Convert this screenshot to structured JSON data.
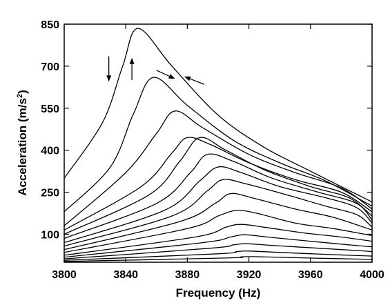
{
  "chart_data": {
    "type": "line",
    "title": "",
    "xlabel": "Frequency (Hz)",
    "ylabel_main": "Acceleration (m/s",
    "ylabel_sup": "2",
    "ylabel_end": ")",
    "xlim": [
      3800,
      4000
    ],
    "ylim": [
      0,
      850
    ],
    "xticks": [
      3800,
      3840,
      3880,
      3920,
      3960,
      4000
    ],
    "xtick_labels": [
      "3800",
      "3840",
      "3880",
      "3920",
      "3960",
      "4000"
    ],
    "yticks": [
      100,
      250,
      400,
      550,
      700,
      850
    ],
    "ytick_labels": [
      "100",
      "250",
      "400",
      "550",
      "700",
      "850"
    ],
    "grid": false,
    "legend": "none",
    "line_color": "#000000",
    "curve_shape": "softening resonance: steep left flank, gradual right tail",
    "series": [
      {
        "values": [
          [
            3800,
            300
          ],
          [
            3825,
            500
          ],
          [
            3838,
            700
          ],
          [
            3848,
            835
          ],
          [
            3870,
            700
          ],
          [
            3900,
            525
          ],
          [
            3930,
            410
          ],
          [
            3960,
            325
          ],
          [
            4000,
            215
          ]
        ]
      },
      {
        "values": [
          [
            3800,
            180
          ],
          [
            3830,
            340
          ],
          [
            3845,
            530
          ],
          [
            3858,
            660
          ],
          [
            3880,
            560
          ],
          [
            3910,
            435
          ],
          [
            3940,
            355
          ],
          [
            3970,
            290
          ],
          [
            4000,
            200
          ]
        ]
      },
      {
        "values": [
          [
            3800,
            130
          ],
          [
            3840,
            320
          ],
          [
            3860,
            460
          ],
          [
            3872,
            540
          ],
          [
            3890,
            480
          ],
          [
            3920,
            385
          ],
          [
            3950,
            320
          ],
          [
            3980,
            265
          ],
          [
            4000,
            190
          ]
        ]
      },
      {
        "values": [
          [
            3800,
            115
          ],
          [
            3850,
            270
          ],
          [
            3870,
            390
          ],
          [
            3880,
            445
          ],
          [
            3895,
            420
          ],
          [
            3920,
            355
          ],
          [
            3950,
            295
          ],
          [
            3980,
            250
          ],
          [
            4000,
            180
          ]
        ]
      },
      {
        "values": [
          [
            3800,
            100
          ],
          [
            3855,
            240
          ],
          [
            3875,
            360
          ],
          [
            3888,
            445
          ],
          [
            3905,
            400
          ],
          [
            3930,
            330
          ],
          [
            3960,
            270
          ],
          [
            3985,
            230
          ],
          [
            4000,
            165
          ]
        ]
      },
      {
        "values": [
          [
            3800,
            85
          ],
          [
            3860,
            210
          ],
          [
            3882,
            320
          ],
          [
            3893,
            385
          ],
          [
            3910,
            360
          ],
          [
            3935,
            300
          ],
          [
            3965,
            250
          ],
          [
            3990,
            210
          ],
          [
            4000,
            150
          ]
        ]
      },
      {
        "values": [
          [
            3800,
            70
          ],
          [
            3865,
            185
          ],
          [
            3888,
            290
          ],
          [
            3900,
            340
          ],
          [
            3915,
            320
          ],
          [
            3940,
            270
          ],
          [
            3970,
            230
          ],
          [
            3990,
            195
          ],
          [
            4000,
            140
          ]
        ]
      },
      {
        "values": [
          [
            3800,
            58
          ],
          [
            3870,
            165
          ],
          [
            3893,
            255
          ],
          [
            3903,
            295
          ],
          [
            3918,
            280
          ],
          [
            3945,
            240
          ],
          [
            3970,
            200
          ],
          [
            3990,
            170
          ],
          [
            4000,
            125
          ]
        ]
      },
      {
        "values": [
          [
            3800,
            45
          ],
          [
            3875,
            145
          ],
          [
            3898,
            210
          ],
          [
            3908,
            245
          ],
          [
            3922,
            230
          ],
          [
            3950,
            190
          ],
          [
            3975,
            160
          ],
          [
            4000,
            115
          ]
        ]
      },
      {
        "values": [
          [
            3800,
            35
          ],
          [
            3880,
            120
          ],
          [
            3900,
            165
          ],
          [
            3912,
            185
          ],
          [
            3925,
            175
          ],
          [
            3950,
            140
          ],
          [
            3975,
            120
          ],
          [
            4000,
            95
          ]
        ]
      },
      {
        "values": [
          [
            3800,
            25
          ],
          [
            3885,
            90
          ],
          [
            3905,
            125
          ],
          [
            3915,
            135
          ],
          [
            3930,
            125
          ],
          [
            3955,
            105
          ],
          [
            3980,
            90
          ],
          [
            4000,
            75
          ]
        ]
      },
      {
        "values": [
          [
            3800,
            18
          ],
          [
            3890,
            70
          ],
          [
            3908,
            90
          ],
          [
            3917,
            98
          ],
          [
            3932,
            90
          ],
          [
            3960,
            75
          ],
          [
            3985,
            62
          ],
          [
            4000,
            55
          ]
        ]
      },
      {
        "values": [
          [
            3800,
            12
          ],
          [
            3895,
            50
          ],
          [
            3910,
            62
          ],
          [
            3918,
            66
          ],
          [
            3935,
            60
          ],
          [
            3965,
            50
          ],
          [
            3990,
            42
          ],
          [
            4000,
            38
          ]
        ]
      },
      {
        "values": [
          [
            3800,
            7
          ],
          [
            3900,
            30
          ],
          [
            3912,
            38
          ],
          [
            3920,
            40
          ],
          [
            3940,
            35
          ],
          [
            3970,
            28
          ],
          [
            4000,
            22
          ]
        ]
      },
      {
        "values": [
          [
            3800,
            3
          ],
          [
            3905,
            15
          ],
          [
            3915,
            19
          ],
          [
            3922,
            20
          ],
          [
            3945,
            17
          ],
          [
            3975,
            13
          ],
          [
            4000,
            10
          ]
        ]
      }
    ],
    "annotations": [
      {
        "type": "arrow",
        "direction": "down",
        "x": 3829,
        "y_from": 735,
        "y_to": 645
      },
      {
        "type": "arrow",
        "direction": "up",
        "x": 3844,
        "y_from": 650,
        "y_to": 730
      },
      {
        "type": "arrow",
        "direction": "down-right",
        "x_from": 3860,
        "y_from": 685,
        "x_to": 3872,
        "y_to": 655
      },
      {
        "type": "arrow",
        "direction": "up-left",
        "x_from": 3891,
        "y_from": 635,
        "x_to": 3878,
        "y_to": 663
      }
    ]
  }
}
